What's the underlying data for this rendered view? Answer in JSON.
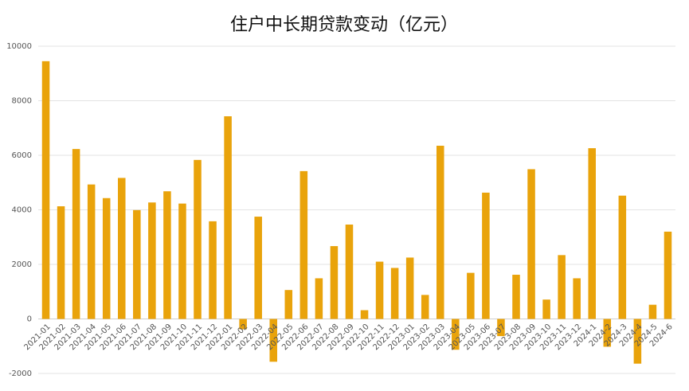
{
  "chart_data": {
    "type": "bar",
    "title": "住户中长期贷款变动（亿元）",
    "categories": [
      "2021-01",
      "2021-02",
      "2021-03",
      "2021-04",
      "2021-05",
      "2021-06",
      "2021-07",
      "2021-08",
      "2021-09",
      "2021-10",
      "2021-11",
      "2021-12",
      "2022-01",
      "2022-02",
      "2022-03",
      "2022-04",
      "2022-05",
      "2022-06",
      "2022-07",
      "2022-08",
      "2022-09",
      "2022-10",
      "2022-11",
      "2022-12",
      "2023-01",
      "2023-02",
      "2023-03",
      "2023-04",
      "2023-05",
      "2023-06",
      "2023-07",
      "2023-08",
      "2023-09",
      "2023-10",
      "2023-11",
      "2023-12",
      "2024-1",
      "2024-2",
      "2024-3",
      "2024-4",
      "2024-5",
      "2024-6"
    ],
    "values": [
      9450,
      4130,
      6230,
      4930,
      4430,
      5170,
      3990,
      4270,
      4680,
      4230,
      5830,
      3580,
      7430,
      -380,
      3750,
      -1570,
      1060,
      5420,
      1490,
      2670,
      3460,
      320,
      2100,
      1870,
      2250,
      880,
      6350,
      -1130,
      1690,
      4630,
      -630,
      1620,
      5490,
      710,
      2340,
      1490,
      6260,
      -1020,
      4520,
      -1640,
      520,
      3200
    ],
    "color": "#e9a30b",
    "ylim": [
      -2000,
      10000
    ],
    "yticks": [
      -2000,
      0,
      2000,
      4000,
      6000,
      8000,
      10000
    ],
    "grid": true
  }
}
